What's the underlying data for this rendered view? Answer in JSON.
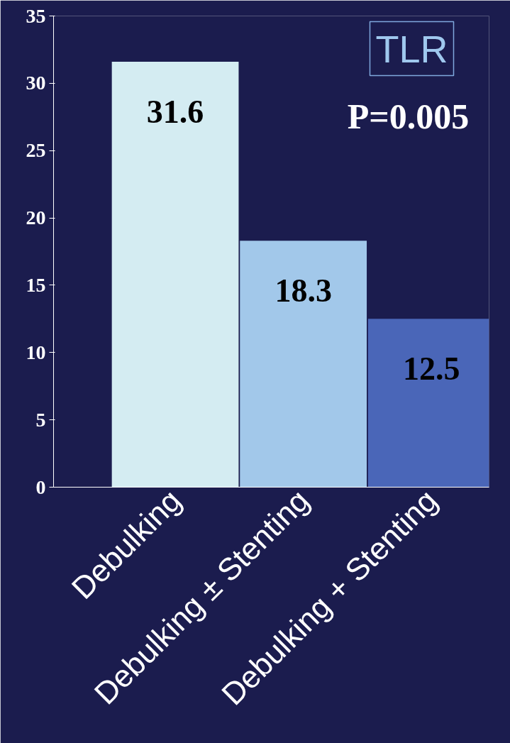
{
  "chart_data": {
    "type": "bar",
    "title": "TLR",
    "categories": [
      "Debulking",
      "Debulking ± Stenting",
      "Debulking + Stenting"
    ],
    "values": [
      31.6,
      18.3,
      12.5
    ],
    "colors": [
      "#d4ecf2",
      "#a2c8ea",
      "#4a66b8"
    ],
    "ylim": [
      0,
      35
    ],
    "yticks": [
      0,
      5,
      10,
      15,
      20,
      25,
      30,
      35
    ],
    "grid": false,
    "data_labels": true,
    "annotations": [
      "P=0.005"
    ]
  }
}
